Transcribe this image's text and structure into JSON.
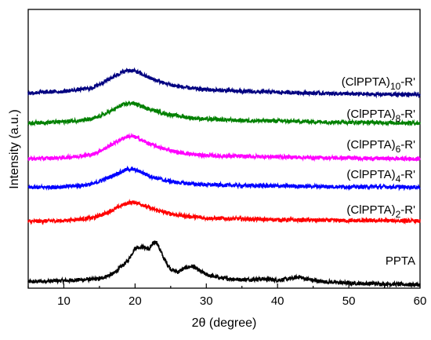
{
  "chart_data": {
    "type": "line",
    "xlabel": "2θ (degree)",
    "ylabel": "Intensity (a.u.)",
    "xlim": [
      5,
      60
    ],
    "ylim": [
      0,
      6.6
    ],
    "x_ticks": [
      10,
      20,
      30,
      40,
      50,
      60
    ],
    "y_ticks_shown": false,
    "grid": false,
    "legend": "none",
    "series": [
      {
        "name": "PPTA",
        "label_main": "PPTA",
        "label_sub": "",
        "label_tail": "",
        "color": "#000000",
        "x": [
          5,
          10,
          15,
          17,
          19,
          20,
          21,
          22,
          22.5,
          23,
          24,
          25,
          26,
          27,
          28,
          29,
          30,
          32,
          35,
          38,
          40,
          42,
          43,
          44,
          46,
          50,
          55,
          60
        ],
        "y": [
          0.15,
          0.18,
          0.22,
          0.35,
          0.65,
          0.95,
          0.98,
          0.92,
          1.05,
          1.1,
          0.72,
          0.45,
          0.38,
          0.48,
          0.52,
          0.42,
          0.32,
          0.24,
          0.2,
          0.22,
          0.19,
          0.23,
          0.27,
          0.22,
          0.16,
          0.12,
          0.1,
          0.08
        ]
      },
      {
        "name": "(ClPPTA)2-R'",
        "label_main": "(ClPPTA)",
        "label_sub": "2",
        "label_tail": "-R'",
        "color": "#ff0000",
        "x": [
          5,
          10,
          14,
          16,
          18,
          19,
          20,
          21,
          22,
          24,
          26,
          28,
          30,
          35,
          40,
          45,
          50,
          55,
          60
        ],
        "y": [
          1.58,
          1.6,
          1.66,
          1.78,
          1.95,
          2.02,
          2.03,
          1.98,
          1.9,
          1.8,
          1.73,
          1.69,
          1.66,
          1.64,
          1.62,
          1.61,
          1.6,
          1.6,
          1.59
        ]
      },
      {
        "name": "(ClPPTA)4-R'",
        "label_main": "(ClPPTA)",
        "label_sub": "4",
        "label_tail": "-R'",
        "color": "#0000ff",
        "x": [
          5,
          10,
          14,
          16,
          18,
          19,
          20,
          21,
          22,
          24,
          26,
          28,
          30,
          35,
          40,
          45,
          50,
          55,
          60
        ],
        "y": [
          2.38,
          2.4,
          2.46,
          2.6,
          2.75,
          2.82,
          2.8,
          2.74,
          2.66,
          2.56,
          2.5,
          2.47,
          2.45,
          2.43,
          2.42,
          2.41,
          2.4,
          2.4,
          2.39
        ]
      },
      {
        "name": "(ClPPTA)6-R'",
        "label_main": "(ClPPTA)",
        "label_sub": "6",
        "label_tail": "-R'",
        "color": "#ff00ff",
        "x": [
          5,
          10,
          14,
          16,
          18,
          19,
          20,
          21,
          22,
          24,
          26,
          28,
          30,
          35,
          40,
          45,
          50,
          55,
          60
        ],
        "y": [
          3.06,
          3.09,
          3.16,
          3.33,
          3.52,
          3.6,
          3.58,
          3.5,
          3.42,
          3.3,
          3.22,
          3.17,
          3.14,
          3.12,
          3.11,
          3.09,
          3.08,
          3.07,
          3.06
        ]
      },
      {
        "name": "(ClPPTA)8-R'",
        "label_main": "(ClPPTA)",
        "label_sub": "8",
        "label_tail": "-R'",
        "color": "#008000",
        "x": [
          5,
          10,
          14,
          16,
          18,
          19,
          20,
          21,
          22,
          24,
          26,
          28,
          30,
          35,
          40,
          45,
          50,
          55,
          60
        ],
        "y": [
          3.91,
          3.94,
          4.0,
          4.14,
          4.32,
          4.38,
          4.37,
          4.3,
          4.24,
          4.14,
          4.08,
          4.03,
          4.0,
          3.97,
          3.96,
          3.94,
          3.93,
          3.92,
          3.91
        ]
      },
      {
        "name": "(ClPPTA)10-R'",
        "label_main": "(ClPPTA)",
        "label_sub": "10",
        "label_tail": "-R'",
        "color": "#000080",
        "x": [
          5,
          10,
          14,
          16,
          18,
          19,
          20,
          21,
          22,
          24,
          26,
          28,
          30,
          35,
          40,
          45,
          50,
          55,
          60
        ],
        "y": [
          4.62,
          4.66,
          4.74,
          4.92,
          5.1,
          5.16,
          5.14,
          5.06,
          4.98,
          4.86,
          4.78,
          4.73,
          4.7,
          4.66,
          4.64,
          4.62,
          4.6,
          4.59,
          4.58
        ]
      }
    ]
  }
}
